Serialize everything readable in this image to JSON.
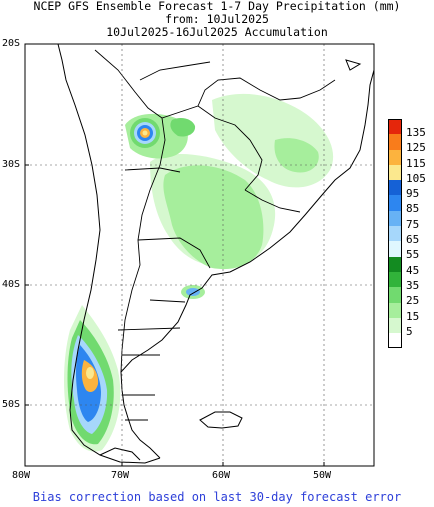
{
  "title": {
    "line1": "NCEP GFS Ensemble Forecast 1-7 Day Precipitation (mm)",
    "line2": "from: 10Jul2025",
    "line3": "10Jul2025-16Jul2025 Accumulation"
  },
  "lat_labels": [
    "20S",
    "30S",
    "40S",
    "50S"
  ],
  "lon_labels": [
    "80W",
    "70W",
    "60W",
    "50W"
  ],
  "legend": {
    "labels": [
      "135",
      "125",
      "115",
      "105",
      "95",
      "85",
      "75",
      "65",
      "55",
      "45",
      "35",
      "25",
      "15",
      "5"
    ],
    "colors": [
      "#e5260b",
      "#f97c1b",
      "#fcb33e",
      "#fbe88e",
      "#1561d6",
      "#2d86f0",
      "#67b2f5",
      "#a6d7fb",
      "#dff7ff",
      "#138b21",
      "#31b33a",
      "#71da6f",
      "#a6ee9c",
      "#d6f8cf",
      "#ffffff"
    ]
  },
  "footer": "Bias correction based on last 30-day forecast error"
}
